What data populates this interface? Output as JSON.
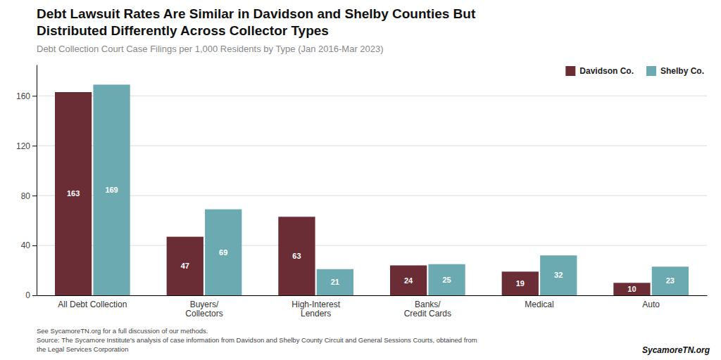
{
  "chart_data": {
    "type": "bar",
    "title": "Debt Lawsuit Rates Are Similar in Davidson and Shelby Counties But\nDistributed Differently Across Collector Types",
    "subtitle": "Debt Collection Court Case Filings per 1,000 Residents by Type (Jan 2016-Mar 2023)",
    "categories": [
      "All Debt Collection",
      "Buyers/\nCollectors",
      "High-Interest\nLenders",
      "Banks/\nCredit Cards",
      "Medical",
      "Auto"
    ],
    "series": [
      {
        "name": "Davidson Co.",
        "color": "#6B2D35",
        "values": [
          163,
          47,
          63,
          24,
          19,
          10
        ]
      },
      {
        "name": "Shelby Co.",
        "color": "#6BAAB0",
        "values": [
          169,
          69,
          21,
          25,
          32,
          23
        ]
      }
    ],
    "ylim": [
      0,
      185
    ],
    "yticks": [
      0,
      40,
      80,
      120,
      160
    ],
    "grid": true,
    "legend": "upper right",
    "data_labels": true,
    "annotations": [
      "See SycamoreTN.org for a full discussion of our methods.",
      "Source: The Sycamore Institute's analysis of case information from Davidson and Shelby County Circuit and General Sessions Courts, obtained from",
      "the Legal Services Corporation",
      "SycamoreTN.org"
    ]
  }
}
